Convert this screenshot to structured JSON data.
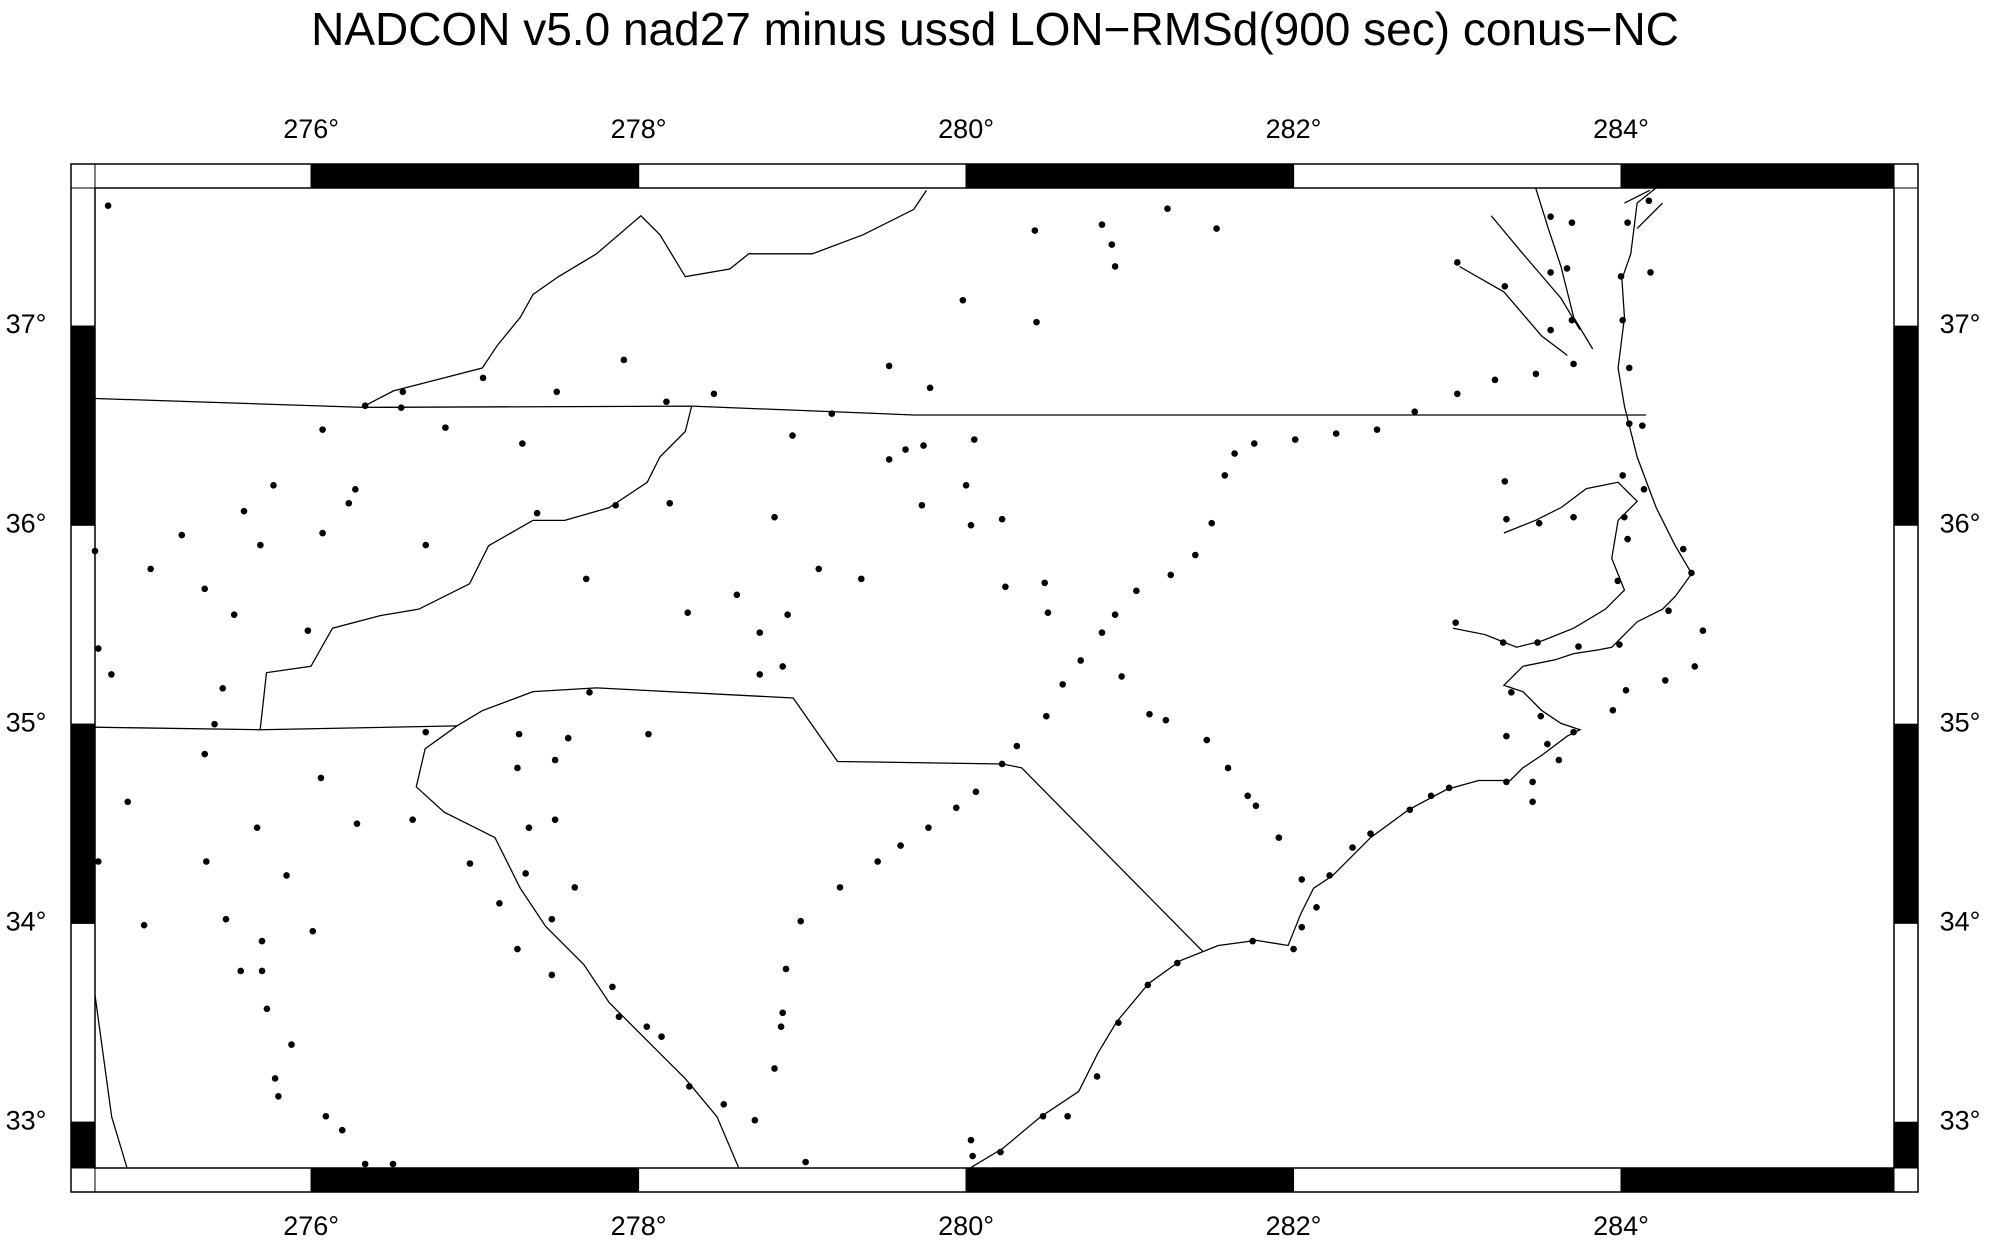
{
  "title": "NADCON v5.0 nad27 minus ussd LON−RMSd(900 sec) conus−NC",
  "map": {
    "xlim": [
      274.68,
      285.667
    ],
    "ylim": [
      32.77,
      37.694
    ],
    "xticks": [
      {
        "value": 276,
        "label": "276°"
      },
      {
        "value": 278,
        "label": "278°"
      },
      {
        "value": 280,
        "label": "280°"
      },
      {
        "value": 282,
        "label": "282°"
      },
      {
        "value": 284,
        "label": "284°"
      }
    ],
    "yticks": [
      {
        "value": 33,
        "label": "33°"
      },
      {
        "value": 34,
        "label": "34°"
      },
      {
        "value": 35,
        "label": "35°"
      },
      {
        "value": 36,
        "label": "36°"
      },
      {
        "value": 37,
        "label": "37°"
      }
    ],
    "points": [
      [
        274.76,
        37.605
      ],
      [
        276.56,
        36.67
      ],
      [
        280.42,
        37.48
      ],
      [
        280.83,
        37.51
      ],
      [
        280.89,
        37.41
      ],
      [
        280.91,
        37.3
      ],
      [
        281.23,
        37.59
      ],
      [
        281.53,
        37.49
      ],
      [
        279.98,
        37.13
      ],
      [
        280.43,
        37.02
      ],
      [
        283.0,
        37.32
      ],
      [
        283.57,
        37.55
      ],
      [
        283.7,
        37.52
      ],
      [
        283.67,
        37.29
      ],
      [
        283.57,
        37.27
      ],
      [
        284.17,
        37.63
      ],
      [
        284.04,
        37.52
      ],
      [
        284.18,
        37.27
      ],
      [
        284.0,
        37.25
      ],
      [
        284.01,
        37.03
      ],
      [
        283.29,
        37.2
      ],
      [
        283.57,
        36.98
      ],
      [
        283.7,
        37.03
      ],
      [
        283.48,
        36.76
      ],
      [
        283.71,
        36.81
      ],
      [
        284.05,
        36.79
      ],
      [
        283.23,
        36.73
      ],
      [
        283.0,
        36.66
      ],
      [
        282.74,
        36.57
      ],
      [
        282.51,
        36.48
      ],
      [
        282.26,
        36.46
      ],
      [
        282.01,
        36.43
      ],
      [
        281.76,
        36.41
      ],
      [
        281.64,
        36.36
      ],
      [
        281.58,
        36.25
      ],
      [
        281.5,
        36.01
      ],
      [
        281.4,
        35.85
      ],
      [
        281.25,
        35.75
      ],
      [
        281.04,
        35.67
      ],
      [
        280.91,
        35.55
      ],
      [
        280.83,
        35.46
      ],
      [
        280.7,
        35.32
      ],
      [
        280.59,
        35.2
      ],
      [
        280.49,
        35.04
      ],
      [
        280.31,
        34.89
      ],
      [
        280.22,
        34.8
      ],
      [
        280.06,
        34.66
      ],
      [
        279.94,
        34.58
      ],
      [
        279.77,
        34.48
      ],
      [
        279.6,
        34.39
      ],
      [
        279.46,
        34.31
      ],
      [
        279.23,
        34.18
      ],
      [
        278.99,
        34.01
      ],
      [
        278.9,
        33.77
      ],
      [
        278.88,
        33.55
      ],
      [
        278.87,
        33.48
      ],
      [
        278.83,
        33.27
      ],
      [
        279.02,
        32.8
      ],
      [
        279.53,
        36.8
      ],
      [
        279.78,
        36.69
      ],
      [
        279.18,
        36.56
      ],
      [
        278.94,
        36.45
      ],
      [
        279.53,
        36.33
      ],
      [
        279.63,
        36.38
      ],
      [
        279.74,
        36.4
      ],
      [
        280.05,
        36.43
      ],
      [
        280.0,
        36.2
      ],
      [
        280.03,
        36.0
      ],
      [
        280.22,
        36.03
      ],
      [
        279.73,
        36.1
      ],
      [
        278.83,
        36.04
      ],
      [
        279.1,
        35.78
      ],
      [
        279.36,
        35.73
      ],
      [
        280.24,
        35.69
      ],
      [
        280.48,
        35.71
      ],
      [
        280.5,
        35.56
      ],
      [
        278.91,
        35.55
      ],
      [
        278.6,
        35.65
      ],
      [
        278.74,
        35.46
      ],
      [
        278.88,
        35.29
      ],
      [
        278.74,
        35.25
      ],
      [
        278.3,
        35.56
      ],
      [
        278.19,
        36.11
      ],
      [
        277.86,
        36.1
      ],
      [
        277.91,
        36.83
      ],
      [
        277.5,
        36.67
      ],
      [
        278.17,
        36.62
      ],
      [
        278.46,
        36.66
      ],
      [
        277.05,
        36.74
      ],
      [
        276.82,
        36.49
      ],
      [
        277.29,
        36.41
      ],
      [
        277.38,
        36.06
      ],
      [
        276.7,
        35.9
      ],
      [
        277.68,
        35.73
      ],
      [
        277.7,
        35.16
      ],
      [
        278.06,
        34.95
      ],
      [
        277.57,
        34.93
      ],
      [
        277.27,
        34.95
      ],
      [
        277.49,
        34.82
      ],
      [
        277.26,
        34.78
      ],
      [
        277.49,
        34.52
      ],
      [
        277.33,
        34.48
      ],
      [
        276.7,
        34.96
      ],
      [
        276.07,
        36.48
      ],
      [
        276.27,
        36.18
      ],
      [
        276.23,
        36.11
      ],
      [
        276.07,
        35.96
      ],
      [
        275.77,
        36.2
      ],
      [
        275.59,
        36.07
      ],
      [
        275.69,
        35.9
      ],
      [
        275.21,
        35.95
      ],
      [
        275.02,
        35.78
      ],
      [
        274.68,
        35.87
      ],
      [
        275.35,
        35.68
      ],
      [
        275.53,
        35.55
      ],
      [
        275.98,
        35.47
      ],
      [
        275.46,
        35.18
      ],
      [
        275.41,
        35.0
      ],
      [
        275.35,
        34.85
      ],
      [
        274.78,
        35.25
      ],
      [
        274.7,
        35.38
      ],
      [
        276.06,
        34.73
      ],
      [
        274.88,
        34.61
      ],
      [
        275.67,
        34.48
      ],
      [
        276.28,
        34.5
      ],
      [
        276.62,
        34.52
      ],
      [
        275.36,
        34.31
      ],
      [
        274.7,
        34.31
      ],
      [
        275.85,
        34.24
      ],
      [
        276.97,
        34.3
      ],
      [
        277.31,
        34.25
      ],
      [
        277.61,
        34.18
      ],
      [
        277.15,
        34.1
      ],
      [
        277.47,
        34.02
      ],
      [
        275.48,
        34.02
      ],
      [
        274.98,
        33.99
      ],
      [
        276.01,
        33.96
      ],
      [
        275.7,
        33.91
      ],
      [
        277.26,
        33.87
      ],
      [
        275.57,
        33.76
      ],
      [
        275.7,
        33.76
      ],
      [
        277.47,
        33.74
      ],
      [
        277.84,
        33.68
      ],
      [
        277.88,
        33.53
      ],
      [
        278.05,
        33.48
      ],
      [
        278.14,
        33.43
      ],
      [
        275.73,
        33.57
      ],
      [
        275.88,
        33.39
      ],
      [
        275.78,
        33.22
      ],
      [
        275.8,
        33.13
      ],
      [
        278.31,
        33.18
      ],
      [
        278.52,
        33.09
      ],
      [
        278.71,
        33.01
      ],
      [
        276.09,
        33.03
      ],
      [
        276.19,
        32.96
      ],
      [
        276.33,
        32.79
      ],
      [
        276.5,
        32.79
      ],
      [
        276.33,
        36.6
      ],
      [
        276.55,
        36.59
      ],
      [
        280.03,
        32.91
      ],
      [
        280.04,
        32.83
      ],
      [
        280.21,
        32.85
      ],
      [
        280.47,
        33.03
      ],
      [
        280.62,
        33.03
      ],
      [
        280.8,
        33.23
      ],
      [
        280.93,
        33.5
      ],
      [
        281.11,
        33.69
      ],
      [
        281.29,
        33.8
      ],
      [
        281.75,
        33.91
      ],
      [
        282.0,
        33.87
      ],
      [
        282.05,
        33.98
      ],
      [
        282.14,
        34.08
      ],
      [
        282.05,
        34.22
      ],
      [
        282.22,
        34.24
      ],
      [
        282.36,
        34.38
      ],
      [
        282.47,
        34.45
      ],
      [
        282.71,
        34.57
      ],
      [
        282.84,
        34.64
      ],
      [
        282.95,
        34.68
      ],
      [
        281.91,
        34.43
      ],
      [
        281.77,
        34.59
      ],
      [
        281.72,
        34.64
      ],
      [
        281.6,
        34.78
      ],
      [
        281.47,
        34.92
      ],
      [
        281.22,
        35.02
      ],
      [
        281.12,
        35.05
      ],
      [
        280.95,
        35.24
      ],
      [
        283.29,
        36.22
      ],
      [
        283.3,
        36.03
      ],
      [
        283.5,
        36.01
      ],
      [
        283.71,
        36.04
      ],
      [
        284.01,
        36.25
      ],
      [
        284.14,
        36.18
      ],
      [
        284.02,
        36.04
      ],
      [
        284.04,
        35.93
      ],
      [
        284.38,
        35.88
      ],
      [
        284.43,
        35.76
      ],
      [
        283.98,
        35.72
      ],
      [
        284.29,
        35.57
      ],
      [
        284.5,
        35.47
      ],
      [
        282.99,
        35.51
      ],
      [
        283.28,
        35.41
      ],
      [
        283.49,
        35.41
      ],
      [
        283.74,
        35.39
      ],
      [
        283.99,
        35.4
      ],
      [
        284.45,
        35.29
      ],
      [
        284.27,
        35.22
      ],
      [
        284.03,
        35.17
      ],
      [
        283.95,
        35.07
      ],
      [
        283.33,
        35.16
      ],
      [
        283.51,
        35.04
      ],
      [
        283.71,
        34.96
      ],
      [
        283.55,
        34.9
      ],
      [
        283.3,
        34.94
      ],
      [
        283.62,
        34.82
      ],
      [
        283.3,
        34.71
      ],
      [
        283.46,
        34.71
      ],
      [
        283.46,
        34.61
      ],
      [
        284.05,
        36.51
      ],
      [
        284.13,
        36.5
      ]
    ]
  }
}
